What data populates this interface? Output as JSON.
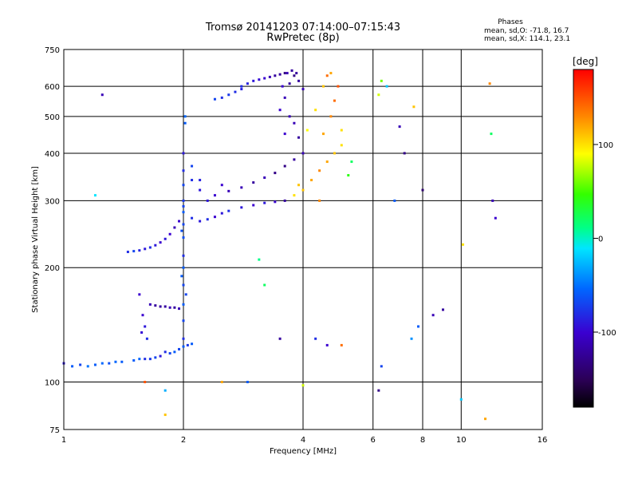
{
  "chart_data": {
    "type": "scatter",
    "title": "Tromsø 20141203 07:14:00–07:15:43",
    "subtitle": "RwPretec (8p)",
    "phase_stats": {
      "heading": "Phases",
      "o_line": "mean, sd,O: -71.8, 16.7",
      "x_line": "mean, sd,X: 114.1, 23.1"
    },
    "xlabel": "Frequency [MHz]",
    "ylabel": "Stationary phase Virtual Height [km]",
    "x_scale": "log",
    "y_scale": "log",
    "xlim": [
      1,
      16
    ],
    "ylim": [
      75,
      750
    ],
    "x_ticks": [
      1,
      2,
      4,
      6,
      8,
      10,
      16
    ],
    "y_ticks": [
      75,
      100,
      200,
      300,
      400,
      500,
      600,
      750
    ],
    "grid": true,
    "colorbar": {
      "label": "[deg]",
      "range": [
        -180,
        180
      ],
      "ticks": [
        100,
        0,
        -100
      ]
    },
    "series": [
      {
        "values": [
          [
            1.0,
            112,
            -90
          ],
          [
            1.05,
            110,
            -60
          ],
          [
            1.1,
            111,
            -70
          ],
          [
            1.15,
            110,
            -50
          ],
          [
            1.2,
            111,
            -60
          ],
          [
            1.25,
            112,
            -55
          ],
          [
            1.3,
            112,
            -65
          ],
          [
            1.35,
            113,
            -55
          ],
          [
            1.4,
            113,
            -60
          ],
          [
            1.5,
            114,
            -60
          ],
          [
            1.55,
            115,
            -55
          ],
          [
            1.6,
            115,
            -80
          ],
          [
            1.65,
            115,
            -75
          ],
          [
            1.7,
            116,
            -70
          ],
          [
            1.75,
            117,
            -90
          ],
          [
            1.8,
            120,
            -80
          ],
          [
            1.85,
            119,
            -70
          ],
          [
            1.9,
            120,
            -60
          ],
          [
            1.95,
            122,
            -70
          ],
          [
            2.0,
            124,
            -60
          ],
          [
            2.05,
            125,
            -75
          ],
          [
            2.1,
            126,
            -60
          ]
        ]
      },
      {
        "values": [
          [
            2.0,
            130,
            -80
          ],
          [
            2.0,
            145,
            -70
          ],
          [
            2.0,
            160,
            -60
          ],
          [
            2.0,
            180,
            -70
          ],
          [
            2.0,
            200,
            -60
          ],
          [
            2.0,
            215,
            -80
          ],
          [
            2.0,
            240,
            -65
          ],
          [
            2.0,
            260,
            -70
          ],
          [
            2.0,
            280,
            -60
          ],
          [
            2.0,
            300,
            -75
          ],
          [
            2.0,
            330,
            -70
          ],
          [
            2.0,
            360,
            -80
          ],
          [
            2.0,
            400,
            -90
          ],
          [
            2.02,
            480,
            -60
          ],
          [
            2.02,
            500,
            -55
          ],
          [
            1.98,
            190,
            -60
          ],
          [
            1.98,
            250,
            -65
          ],
          [
            2.03,
            170,
            -70
          ]
        ]
      },
      {
        "values": [
          [
            1.45,
            220,
            -80
          ],
          [
            1.5,
            221,
            -70
          ],
          [
            1.55,
            222,
            -85
          ],
          [
            1.6,
            224,
            -90
          ],
          [
            1.65,
            226,
            -80
          ],
          [
            1.7,
            229,
            -90
          ],
          [
            1.75,
            233,
            -100
          ],
          [
            1.8,
            238,
            -90
          ],
          [
            1.85,
            245,
            -100
          ],
          [
            1.9,
            255,
            -110
          ],
          [
            1.95,
            265,
            -100
          ]
        ]
      },
      {
        "values": [
          [
            1.65,
            160,
            -110
          ],
          [
            1.7,
            159,
            -120
          ],
          [
            1.75,
            158,
            -120
          ],
          [
            1.8,
            158,
            -120
          ],
          [
            1.85,
            157,
            -110
          ],
          [
            1.9,
            157,
            -120
          ],
          [
            1.95,
            156,
            -110
          ],
          [
            1.55,
            170,
            -100
          ],
          [
            1.58,
            150,
            -100
          ],
          [
            1.6,
            140,
            -90
          ],
          [
            1.62,
            130,
            -80
          ],
          [
            1.57,
            135,
            -95
          ]
        ]
      },
      {
        "values": [
          [
            2.0,
            290,
            -70
          ],
          [
            2.1,
            270,
            -80
          ],
          [
            2.2,
            265,
            -90
          ],
          [
            2.3,
            268,
            -80
          ],
          [
            2.4,
            272,
            -100
          ],
          [
            2.5,
            278,
            -90
          ],
          [
            2.6,
            282,
            -80
          ],
          [
            2.8,
            288,
            -90
          ],
          [
            3.0,
            292,
            -100
          ],
          [
            3.2,
            296,
            -90
          ],
          [
            3.4,
            298,
            -100
          ],
          [
            3.6,
            300,
            -120
          ]
        ]
      },
      {
        "values": [
          [
            2.2,
            320,
            -90
          ],
          [
            2.4,
            310,
            -100
          ],
          [
            2.6,
            318,
            -110
          ],
          [
            2.8,
            325,
            -110
          ],
          [
            3.0,
            335,
            -120
          ],
          [
            3.2,
            345,
            -110
          ],
          [
            3.4,
            355,
            -130
          ],
          [
            3.6,
            370,
            -130
          ],
          [
            3.8,
            385,
            -120
          ],
          [
            4.0,
            400,
            -110
          ],
          [
            3.9,
            440,
            -120
          ],
          [
            3.8,
            480,
            -110
          ]
        ]
      },
      {
        "values": [
          [
            2.1,
            370,
            -70
          ],
          [
            2.1,
            340,
            -80
          ],
          [
            2.2,
            340,
            -85
          ],
          [
            2.3,
            300,
            -90
          ],
          [
            2.5,
            330,
            -100
          ]
        ]
      },
      {
        "values": [
          [
            3.5,
            520,
            -100
          ],
          [
            3.6,
            560,
            -110
          ],
          [
            3.7,
            610,
            -120
          ],
          [
            3.8,
            640,
            -130
          ],
          [
            3.9,
            620,
            -120
          ],
          [
            4.0,
            590,
            -110
          ],
          [
            3.55,
            600,
            -100
          ],
          [
            3.65,
            650,
            -110
          ],
          [
            3.75,
            660,
            -120
          ],
          [
            3.85,
            650,
            -120
          ],
          [
            3.6,
            450,
            -100
          ],
          [
            3.7,
            500,
            -110
          ]
        ]
      },
      {
        "values": [
          [
            2.8,
            600,
            -80
          ],
          [
            2.9,
            610,
            -85
          ],
          [
            3.0,
            620,
            -90
          ],
          [
            3.1,
            625,
            -95
          ],
          [
            3.2,
            630,
            -100
          ],
          [
            3.3,
            635,
            -110
          ],
          [
            3.4,
            640,
            -120
          ],
          [
            3.5,
            645,
            -120
          ],
          [
            3.6,
            650,
            -130
          ]
        ]
      },
      {
        "values": [
          [
            2.4,
            555,
            -70
          ],
          [
            2.5,
            560,
            -80
          ],
          [
            2.6,
            570,
            -75
          ],
          [
            2.7,
            580,
            -80
          ],
          [
            2.8,
            590,
            -85
          ]
        ]
      },
      {
        "values": [
          [
            3.8,
            310,
            100
          ],
          [
            4.0,
            320,
            110
          ],
          [
            4.2,
            340,
            120
          ],
          [
            4.4,
            360,
            130
          ],
          [
            4.6,
            380,
            120
          ],
          [
            4.8,
            400,
            110
          ],
          [
            5.0,
            420,
            100
          ],
          [
            4.5,
            450,
            120
          ],
          [
            4.7,
            500,
            130
          ],
          [
            4.8,
            550,
            140
          ],
          [
            4.9,
            600,
            150
          ],
          [
            4.5,
            600,
            110
          ],
          [
            4.6,
            640,
            140
          ],
          [
            4.7,
            650,
            120
          ],
          [
            4.3,
            520,
            100
          ],
          [
            4.1,
            460,
            90
          ],
          [
            3.9,
            330,
            110
          ],
          [
            4.4,
            300,
            130
          ]
        ]
      },
      {
        "values": [
          [
            5.2,
            350,
            40
          ],
          [
            5.3,
            380,
            20
          ],
          [
            5.0,
            460,
            100
          ],
          [
            6.2,
            570,
            80
          ],
          [
            6.3,
            620,
            60
          ],
          [
            6.5,
            600,
            -20
          ],
          [
            6.8,
            300,
            -60
          ],
          [
            7.0,
            470,
            -110
          ],
          [
            7.2,
            400,
            -130
          ],
          [
            7.6,
            530,
            110
          ],
          [
            8.0,
            320,
            -140
          ],
          [
            8.5,
            150,
            -110
          ],
          [
            9.0,
            155,
            -120
          ],
          [
            10.1,
            230,
            100
          ],
          [
            11.8,
            610,
            130
          ],
          [
            11.9,
            450,
            20
          ],
          [
            12.0,
            300,
            -110
          ],
          [
            12.2,
            270,
            -100
          ],
          [
            6.2,
            95,
            -130
          ],
          [
            6.3,
            110,
            -70
          ],
          [
            7.5,
            130,
            -40
          ],
          [
            7.8,
            140,
            -60
          ],
          [
            10.0,
            90,
            -20
          ],
          [
            11.5,
            80,
            120
          ]
        ]
      },
      {
        "values": [
          [
            1.25,
            570,
            -110
          ],
          [
            1.2,
            310,
            -10
          ],
          [
            1.6,
            100,
            150
          ],
          [
            1.8,
            82,
            110
          ],
          [
            1.8,
            95,
            -30
          ],
          [
            2.5,
            100,
            120
          ],
          [
            2.9,
            100,
            -60
          ],
          [
            3.2,
            180,
            20
          ],
          [
            3.1,
            210,
            10
          ],
          [
            4.0,
            98,
            80
          ],
          [
            3.5,
            130,
            -120
          ],
          [
            4.3,
            130,
            -80
          ],
          [
            4.6,
            125,
            -100
          ],
          [
            5.0,
            125,
            140
          ]
        ]
      }
    ]
  }
}
